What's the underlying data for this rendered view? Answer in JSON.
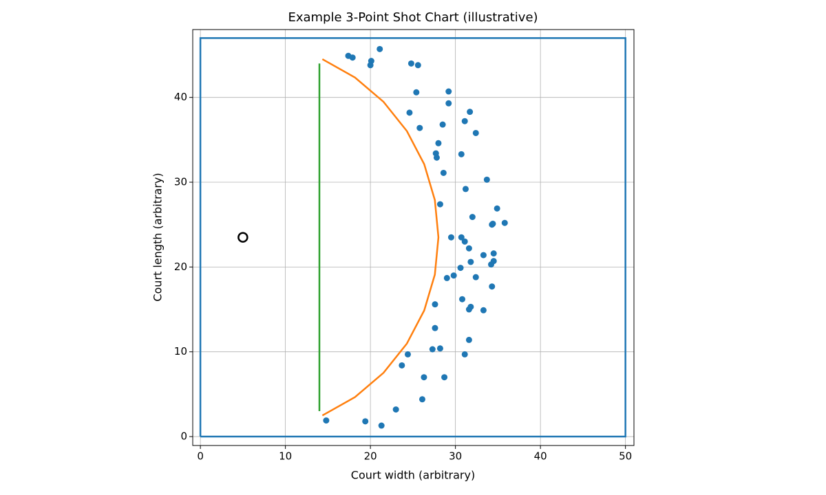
{
  "chart_data": {
    "type": "scatter",
    "title": "Example 3-Point Shot Chart (illustrative)",
    "x_label": "Court width (arbitrary)",
    "y_label": "Court length (arbitrary)",
    "xlim": [
      -0.9,
      51
    ],
    "ylim": [
      -1.05,
      48
    ],
    "xticks": [
      0,
      10,
      20,
      30,
      40,
      50
    ],
    "yticks": [
      0,
      10,
      20,
      30,
      40
    ],
    "grid": true,
    "series": [
      {
        "kind": "line",
        "color": "#1f77b4",
        "x": [
          0,
          50,
          50,
          0,
          0
        ],
        "y": [
          0,
          0,
          47,
          47,
          0
        ]
      },
      {
        "kind": "line",
        "color": "#2ca02c",
        "x": [
          14,
          14
        ],
        "y": [
          3,
          44
        ]
      },
      {
        "kind": "line",
        "color": "#ff7f0e",
        "x": [
          14.35,
          18.19,
          21.54,
          24.29,
          26.33,
          27.58,
          28,
          27.58,
          26.33,
          24.29,
          21.54,
          18.19,
          14.35
        ],
        "y": [
          2.49,
          4.66,
          7.52,
          10.97,
          14.88,
          19.11,
          23.5,
          27.89,
          32.12,
          36.03,
          39.48,
          42.34,
          44.51
        ]
      },
      {
        "kind": "scatter",
        "color": "#1f77b4",
        "x": [
          17.4,
          17.9,
          21.1,
          20.1,
          20.0,
          24.8,
          25.6,
          25.4,
          29.2,
          29.2,
          24.6,
          31.7,
          31.1,
          25.8,
          28.5,
          32.4,
          28.0,
          27.7,
          27.8,
          30.7,
          28.6,
          33.7,
          31.2,
          28.2,
          34.9,
          32.0,
          34.4,
          34.3,
          35.8,
          29.5,
          30.7,
          31.1,
          31.6,
          33.3,
          34.5,
          34.5,
          34.2,
          31.8,
          30.6,
          29.8,
          29.0,
          32.4,
          34.3,
          27.6,
          30.8,
          31.8,
          31.6,
          33.3,
          27.6,
          31.6,
          27.3,
          28.2,
          24.4,
          31.1,
          23.7,
          26.3,
          28.7,
          26.1,
          23.0,
          14.8,
          19.4,
          21.3
        ],
        "y": [
          44.9,
          44.7,
          45.7,
          44.3,
          43.8,
          44.0,
          43.8,
          40.6,
          40.7,
          39.3,
          38.2,
          38.3,
          37.2,
          36.4,
          36.8,
          35.8,
          34.6,
          33.4,
          32.9,
          33.3,
          31.1,
          30.3,
          29.2,
          27.4,
          26.9,
          25.9,
          25.1,
          25.0,
          25.2,
          23.5,
          23.5,
          23.0,
          22.2,
          21.4,
          21.6,
          20.7,
          20.3,
          20.6,
          19.9,
          19.0,
          18.7,
          18.8,
          17.7,
          15.6,
          16.2,
          15.3,
          15.0,
          14.9,
          12.8,
          11.4,
          10.3,
          10.4,
          9.7,
          9.7,
          8.4,
          7.0,
          7.0,
          4.4,
          3.2,
          1.9,
          1.8,
          1.3
        ]
      },
      {
        "kind": "scatter",
        "marker": "hollow",
        "color": "#000000",
        "x": [
          5
        ],
        "y": [
          23.5
        ]
      }
    ]
  }
}
